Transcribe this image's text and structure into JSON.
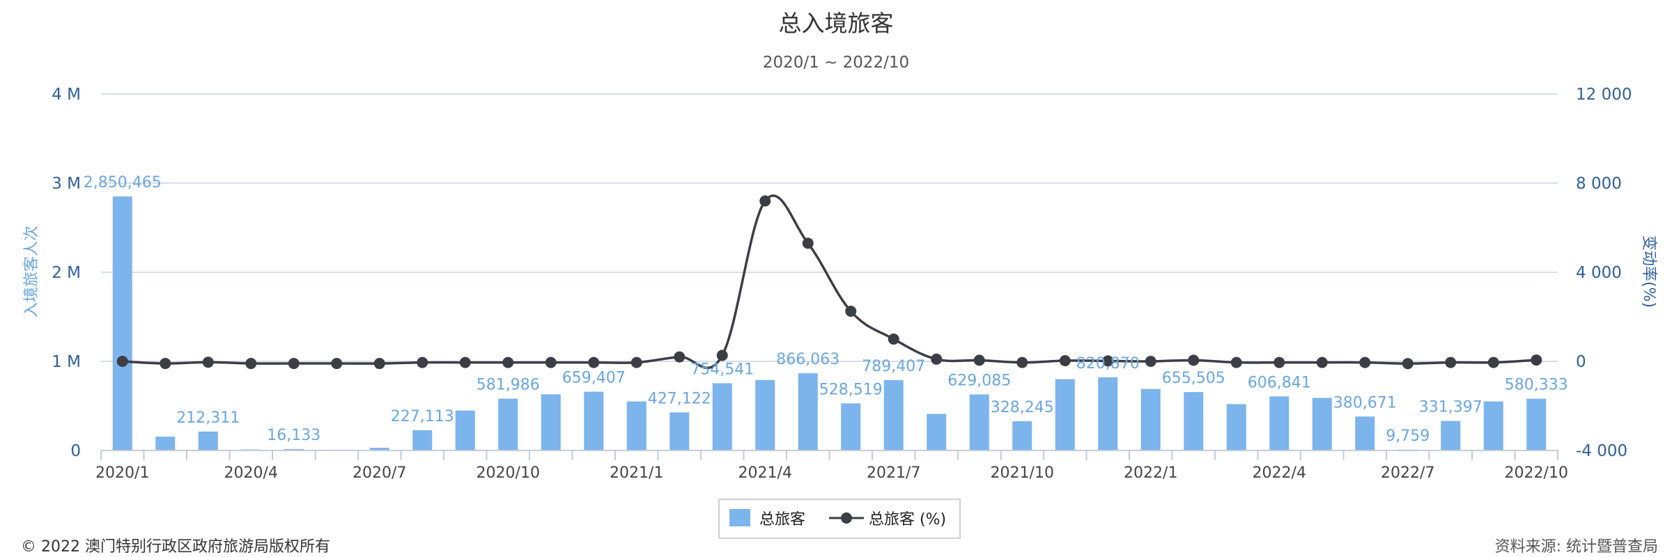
{
  "chart_data": {
    "type": "bar",
    "title": "总入境旅客",
    "subtitle": "2020/1 ~ 2022/10",
    "ylabel": "入境旅客人次",
    "y2label": "变动率(%)",
    "ylim": [
      0,
      4000000
    ],
    "y2lim": [
      -4000,
      12000
    ],
    "yticks": [
      "0",
      "1 M",
      "2 M",
      "3 M",
      "4 M"
    ],
    "y2ticks": [
      "-4 000",
      "0",
      "4 000",
      "8 000",
      "12 000"
    ],
    "categories": [
      "2020/1",
      "2020/2",
      "2020/3",
      "2020/4",
      "2020/5",
      "2020/6",
      "2020/7",
      "2020/8",
      "2020/9",
      "2020/10",
      "2020/11",
      "2020/12",
      "2021/1",
      "2021/2",
      "2021/3",
      "2021/4",
      "2021/5",
      "2021/6",
      "2021/7",
      "2021/8",
      "2021/9",
      "2021/10",
      "2021/11",
      "2021/12",
      "2022/1",
      "2022/2",
      "2022/3",
      "2022/4",
      "2022/5",
      "2022/6",
      "2022/7",
      "2022/8",
      "2022/9",
      "2022/10"
    ],
    "xtick_labels": [
      "2020/1",
      "2020/4",
      "2020/7",
      "2020/10",
      "2021/1",
      "2021/4",
      "2021/7",
      "2021/10",
      "2022/1",
      "2022/4",
      "2022/7",
      "2022/10"
    ],
    "series": [
      {
        "name": "总旅客",
        "type": "bar",
        "axis": "left",
        "color": "#7cb4ec",
        "values": [
          2850465,
          155000,
          212311,
          11000,
          16133,
          9000,
          30000,
          227113,
          448000,
          581986,
          630000,
          659407,
          550000,
          427122,
          754541,
          790000,
          866063,
          528519,
          789407,
          410000,
          629085,
          328245,
          800000,
          820870,
          690000,
          655505,
          520000,
          606841,
          590000,
          380671,
          9759,
          331397,
          550000,
          580333
        ]
      },
      {
        "name": "总旅客 (%)",
        "type": "line",
        "axis": "right",
        "color": "#3d3d45",
        "values": [
          0,
          -95,
          -40,
          -95,
          -95,
          -95,
          -95,
          -50,
          -50,
          -50,
          -50,
          -50,
          -50,
          200,
          270,
          7200,
          5300,
          2250,
          1000,
          100,
          50,
          -50,
          30,
          20,
          0,
          50,
          -50,
          -50,
          -50,
          -50,
          -100,
          -50,
          -50,
          60
        ]
      }
    ],
    "data_labels": [
      {
        "index": 0,
        "text": "2,850,465"
      },
      {
        "index": 2,
        "text": "212,311"
      },
      {
        "index": 4,
        "text": "16,133"
      },
      {
        "index": 7,
        "text": "227,113"
      },
      {
        "index": 9,
        "text": "581,986"
      },
      {
        "index": 11,
        "text": "659,407"
      },
      {
        "index": 13,
        "text": "427,122"
      },
      {
        "index": 14,
        "text": "754,541"
      },
      {
        "index": 16,
        "text": "866,063"
      },
      {
        "index": 17,
        "text": "528,519"
      },
      {
        "index": 18,
        "text": "789,407"
      },
      {
        "index": 20,
        "text": "629,085"
      },
      {
        "index": 21,
        "text": "328,245"
      },
      {
        "index": 23,
        "text": "820,870"
      },
      {
        "index": 25,
        "text": "655,505"
      },
      {
        "index": 27,
        "text": "606,841"
      },
      {
        "index": 29,
        "text": "380,671"
      },
      {
        "index": 30,
        "text": "9,759"
      },
      {
        "index": 31,
        "text": "331,397"
      },
      {
        "index": 33,
        "text": "580,333"
      }
    ],
    "legend": {
      "position": "bottom-center",
      "items": [
        "总旅客",
        "总旅客 (%)"
      ]
    },
    "grid": true
  },
  "footer": {
    "copyright": "© 2022 澳门特别行政区政府旅游局版权所有",
    "source": "资料来源: 统计暨普查局"
  }
}
